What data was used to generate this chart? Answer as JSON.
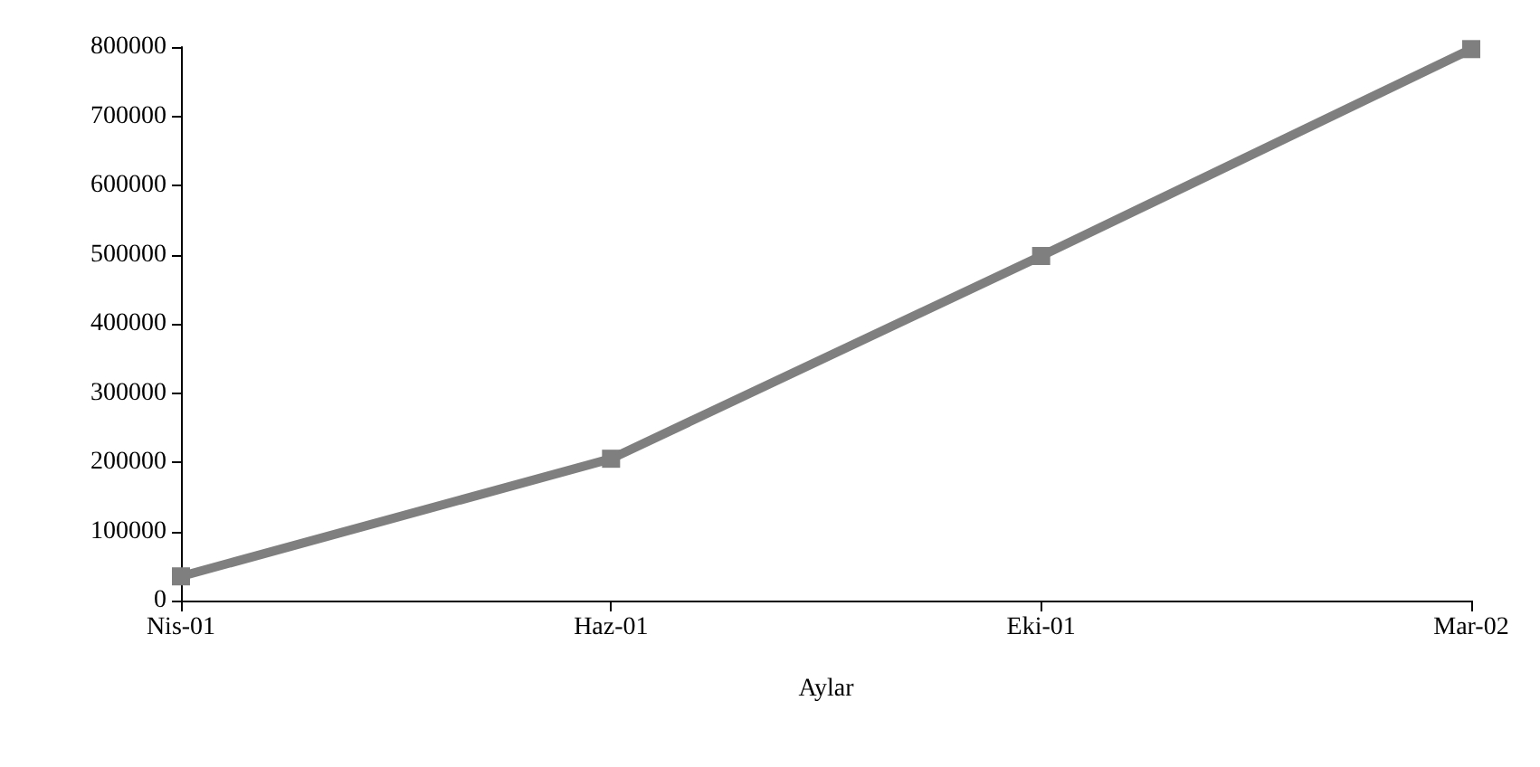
{
  "chart_data": {
    "type": "line",
    "xlabel": "Aylar",
    "categories": [
      "Nis-01",
      "Haz-01",
      "Eki-01",
      "Mar-02"
    ],
    "series": [
      {
        "color": "#7f7f7f",
        "values": [
          35000,
          205000,
          498000,
          797000
        ]
      }
    ],
    "ylim": [
      0,
      800000
    ],
    "yticks": [
      0,
      100000,
      200000,
      300000,
      400000,
      500000,
      600000,
      700000,
      800000
    ],
    "grid": false,
    "marker": "square",
    "line_style": "solid"
  }
}
